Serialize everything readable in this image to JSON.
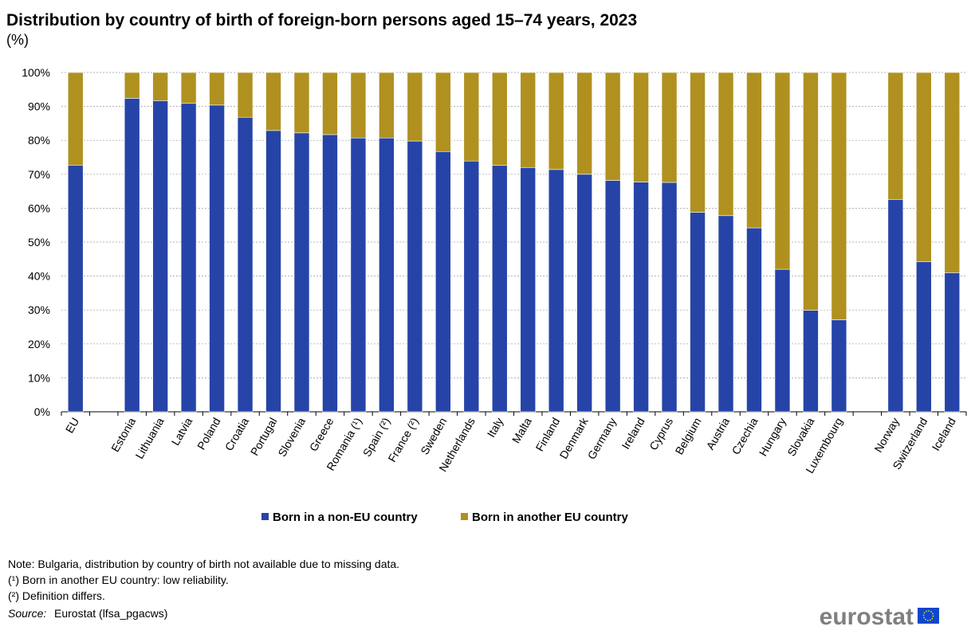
{
  "chart_data": {
    "type": "stacked-bar",
    "title": "Distribution by country of birth of foreign-born persons aged 15–74 years, 2023",
    "subtitle": "(%)",
    "categories": [
      "EU",
      null,
      "Estonia",
      "Lithuania",
      "Latvia",
      "Poland",
      "Croatia",
      "Portugal",
      "Slovenia",
      "Greece",
      "Romania (¹)",
      "Spain (²)",
      "France (²)",
      "Sweden",
      "Netherlands",
      "Italy",
      "Malta",
      "Finland",
      "Denmark",
      "Germany",
      "Ireland",
      "Cyprus",
      "Belgium",
      "Austria",
      "Czechia",
      "Hungary",
      "Slovakia",
      "Luxembourg",
      null,
      "Norway",
      "Switzerland",
      "Iceland"
    ],
    "series": [
      {
        "name": "Born in a non-EU country",
        "color": "#2644a7",
        "values": [
          72.7,
          null,
          92.4,
          91.7,
          90.9,
          90.4,
          86.8,
          82.9,
          82.2,
          81.7,
          80.7,
          80.7,
          79.8,
          76.7,
          73.9,
          72.6,
          72.0,
          71.4,
          70.0,
          68.2,
          67.7,
          67.6,
          58.8,
          57.8,
          54.2,
          42.0,
          29.9,
          27.1,
          null,
          62.6,
          44.2,
          41.0
        ]
      },
      {
        "name": "Born in another EU country",
        "color": "#b09120",
        "values": [
          27.3,
          null,
          7.6,
          8.3,
          9.1,
          9.6,
          13.2,
          17.1,
          17.8,
          18.3,
          19.3,
          19.3,
          20.2,
          23.3,
          26.1,
          27.4,
          28.0,
          28.6,
          30.0,
          31.8,
          32.3,
          32.4,
          41.2,
          42.2,
          45.8,
          58.0,
          70.1,
          72.9,
          null,
          37.4,
          55.8,
          59.0
        ]
      }
    ],
    "ylim": [
      0,
      100
    ],
    "yticks": [
      {
        "value": 0,
        "label": "0%"
      },
      {
        "value": 10,
        "label": "10%"
      },
      {
        "value": 20,
        "label": "20%"
      },
      {
        "value": 30,
        "label": "30%"
      },
      {
        "value": 40,
        "label": "40%"
      },
      {
        "value": 50,
        "label": "50%"
      },
      {
        "value": 60,
        "label": "60%"
      },
      {
        "value": 70,
        "label": "70%"
      },
      {
        "value": 80,
        "label": "80%"
      },
      {
        "value": 90,
        "label": "90%"
      },
      {
        "value": 100,
        "label": "100%"
      }
    ],
    "grid": true,
    "legend": "bottom",
    "notes": [
      "Note: Bulgaria, distribution by country of birth not available due to missing data.",
      "(¹) Born in another EU country: low reliability.",
      "(²) Definition differs."
    ],
    "source_label": "Source:",
    "source": "Eurostat (lfsa_pgacws)",
    "logo": "eurostat"
  }
}
